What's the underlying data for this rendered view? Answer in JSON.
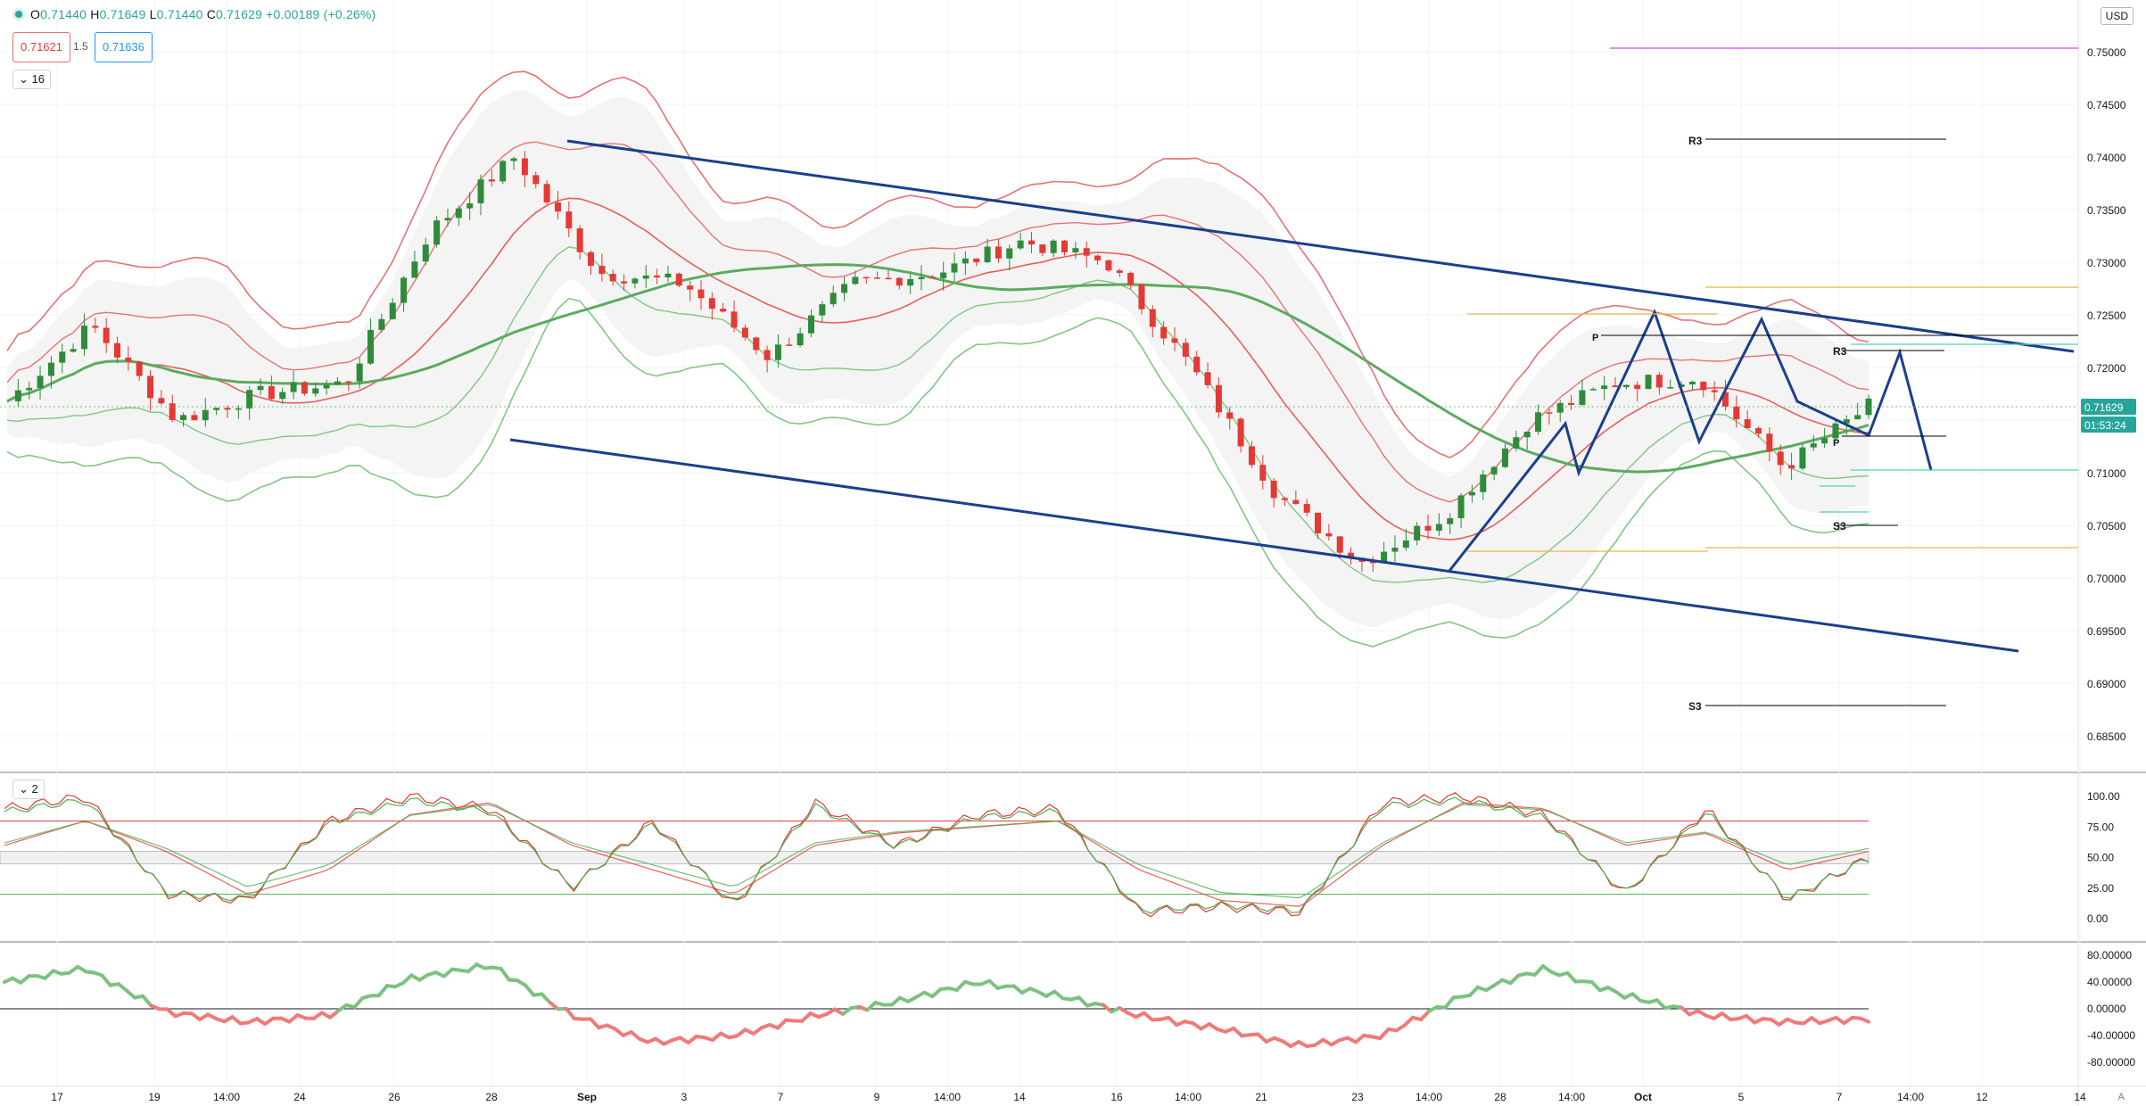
{
  "header": {
    "ohlc": {
      "open": "0.71440",
      "high": "0.71649",
      "low": "0.71440",
      "close": "0.71629",
      "change": "+0.00189 (+0.26%)"
    },
    "bid": "0.71621",
    "spread": "1.5",
    "ask": "0.71636",
    "indicator_count_main": "16",
    "indicator_count_osc": "2",
    "currency": "USD",
    "auto_label": "A"
  },
  "colors": {
    "bull": "#26a69a",
    "candle_up": "#2e8b3a",
    "candle_down": "#e53935",
    "channel": "#1a3f8f",
    "band_red": "#e57373",
    "band_green": "#81c784",
    "pivot": "#000000",
    "fib_orange": "#f0b24a",
    "magenta": "#e040fb",
    "aqua": "#4dd0b4"
  },
  "price_axis": {
    "ticks": [
      "0.75000",
      "0.74500",
      "0.74000",
      "0.73500",
      "0.73000",
      "0.72500",
      "0.72000",
      "0.71500",
      "0.71000",
      "0.70500",
      "0.70000",
      "0.69500",
      "0.69000",
      "0.68500"
    ],
    "last_price": "0.71629",
    "countdown": "01:53:24"
  },
  "time_axis": {
    "labels": [
      "17",
      "19",
      "14:00",
      "24",
      "26",
      "28",
      "Sep",
      "3",
      "7",
      "9",
      "14:00",
      "14",
      "16",
      "14:00",
      "21",
      "23",
      "14:00",
      "28",
      "14:00",
      "Oct",
      "5",
      "7",
      "14:00",
      "12",
      "14"
    ]
  },
  "pivot_labels": {
    "r3_upper": "R3",
    "r3_lower": "R3",
    "s3_lower": "S3",
    "s3_upper": "S3",
    "p_main": "P",
    "p_small": "P"
  },
  "stoch_axis": {
    "ticks": [
      "100.00",
      "75.00",
      "50.00",
      "25.00",
      "0.00"
    ]
  },
  "osc_axis": {
    "ticks": [
      "80.00000",
      "40.00000",
      "0.00000",
      "-40.00000",
      "-80.00000"
    ]
  },
  "chart_data": [
    {
      "type": "line",
      "title": "",
      "ylim": [
        0.6835,
        0.7525
      ],
      "note": "Candlestick price series (closes, approximate) with Bollinger-style bands, moving averages, descending channel and pivot levels",
      "x": [
        "17",
        "19",
        "14:00",
        "24",
        "26",
        "28",
        "Sep",
        "3",
        "7",
        "9",
        "14:00",
        "14",
        "16",
        "14:00",
        "21",
        "23",
        "14:00",
        "28",
        "14:00",
        "Oct",
        "5",
        "7",
        "14:00"
      ],
      "series": [
        {
          "name": "close",
          "values": [
            0.7168,
            0.724,
            0.715,
            0.7175,
            0.7185,
            0.733,
            0.74,
            0.729,
            0.728,
            0.721,
            0.728,
            0.729,
            0.732,
            0.73,
            0.72,
            0.708,
            0.7015,
            0.706,
            0.715,
            0.7185,
            0.719,
            0.7105,
            0.7163
          ]
        }
      ]
    },
    {
      "type": "line",
      "ylim": [
        -5,
        105
      ],
      "series": [
        {
          "name": "stoch_fast",
          "values": [
            90,
            100,
            20,
            15,
            80,
            100,
            90,
            25,
            80,
            10,
            95,
            60,
            85,
            90,
            5,
            10,
            5,
            95,
            100,
            85,
            20,
            90,
            15,
            50
          ]
        },
        {
          "name": "stoch_slow",
          "values": [
            60,
            80,
            55,
            20,
            40,
            85,
            95,
            60,
            40,
            20,
            60,
            70,
            75,
            80,
            40,
            15,
            10,
            60,
            95,
            90,
            60,
            70,
            40,
            55
          ]
        }
      ]
    },
    {
      "type": "line",
      "ylim": [
        -90,
        90
      ],
      "series": [
        {
          "name": "momentum",
          "values": [
            40,
            60,
            -5,
            -20,
            -10,
            45,
            65,
            -10,
            -50,
            -40,
            -10,
            10,
            40,
            20,
            -10,
            -30,
            -55,
            -40,
            20,
            60,
            20,
            -10,
            -20,
            -15
          ]
        }
      ]
    }
  ]
}
